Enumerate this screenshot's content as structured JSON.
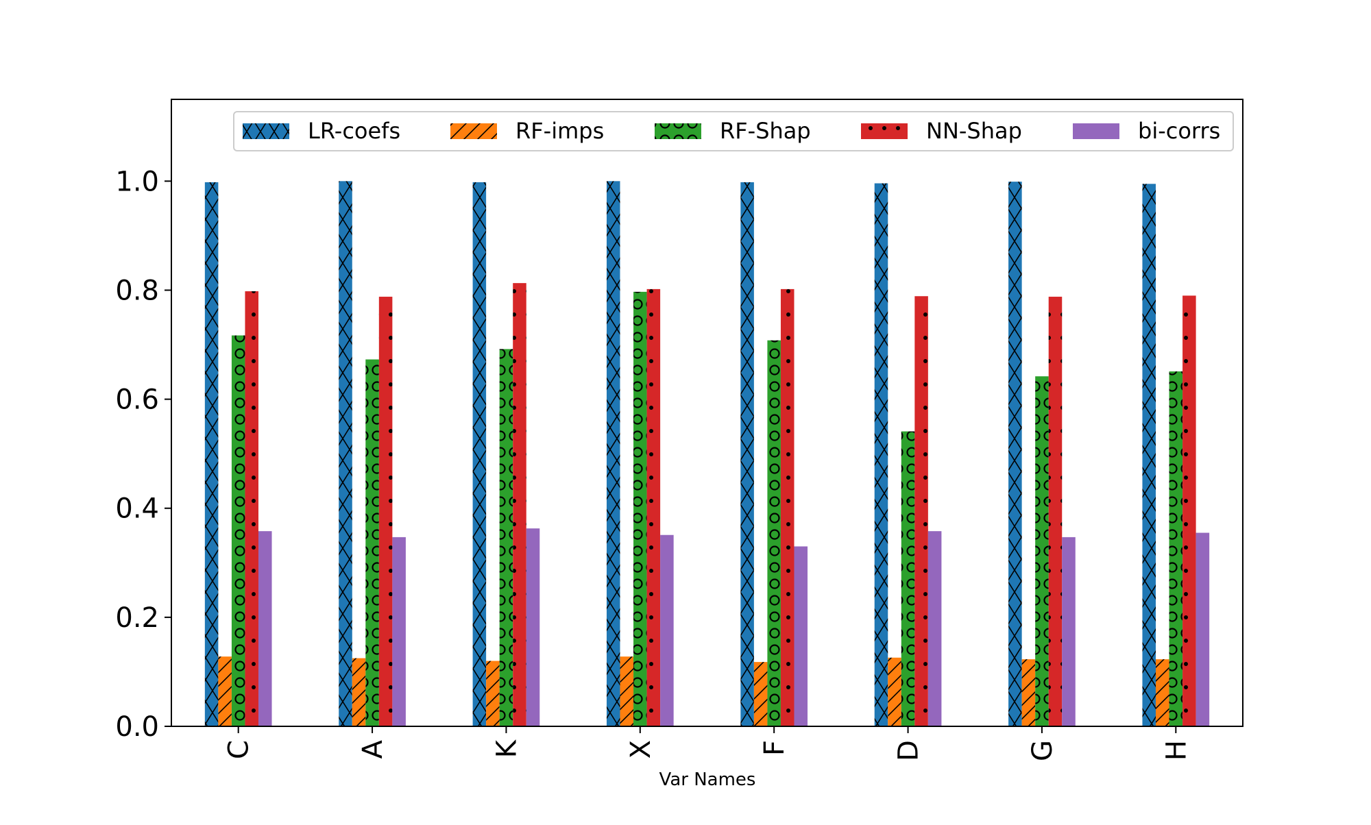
{
  "chart_data": {
    "type": "bar",
    "title": "",
    "xlabel": "Var Names",
    "ylabel": "",
    "ylim": [
      0,
      1.15
    ],
    "yticks": [
      0.0,
      0.2,
      0.4,
      0.6,
      0.8,
      1.0
    ],
    "ytick_labels": [
      "0.0",
      "0.2",
      "0.4",
      "0.6",
      "0.8",
      "1.0"
    ],
    "categories": [
      "C",
      "A",
      "K",
      "X",
      "F",
      "D",
      "G",
      "H"
    ],
    "grid": false,
    "legend_position": "top",
    "series": [
      {
        "name": "LR-coefs",
        "color": "#1f77b4",
        "hatch": "x",
        "values": [
          0.998,
          1.0,
          0.998,
          1.0,
          0.998,
          0.996,
          0.999,
          0.995
        ]
      },
      {
        "name": "RF-imps",
        "color": "#ff7f0e",
        "hatch": "/",
        "values": [
          0.128,
          0.125,
          0.12,
          0.128,
          0.118,
          0.126,
          0.123,
          0.123
        ]
      },
      {
        "name": "RF-Shap",
        "color": "#2ca02c",
        "hatch": "o",
        "values": [
          0.717,
          0.673,
          0.692,
          0.797,
          0.708,
          0.541,
          0.642,
          0.651
        ]
      },
      {
        "name": "NN-Shap",
        "color": "#d62728",
        "hatch": ".",
        "values": [
          0.798,
          0.788,
          0.813,
          0.802,
          0.802,
          0.789,
          0.788,
          0.79
        ]
      },
      {
        "name": "bi-corrs",
        "color": "#9467bd",
        "hatch": "",
        "values": [
          0.358,
          0.347,
          0.363,
          0.351,
          0.33,
          0.358,
          0.347,
          0.355
        ]
      }
    ]
  }
}
